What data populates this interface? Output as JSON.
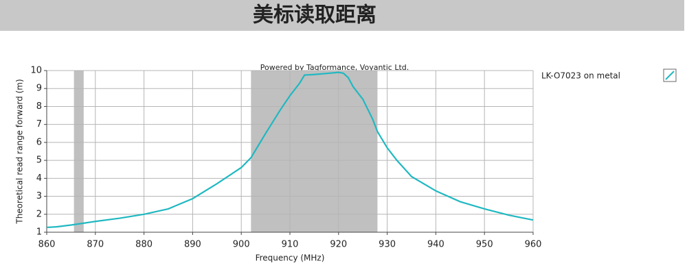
{
  "chart_data": {
    "type": "line",
    "title": "美标读取距离",
    "annotation": "Powered by Tagformance, Voyantic Ltd.",
    "x_label": "Frequency (MHz)",
    "y_label": "Theoretical read range forward (m)",
    "x": [
      860,
      862,
      865,
      868,
      870,
      875,
      880,
      885,
      890,
      895,
      900,
      902,
      905,
      908,
      910,
      912,
      913,
      915,
      918,
      920,
      921,
      922,
      923,
      925,
      927,
      928,
      930,
      932,
      935,
      940,
      945,
      950,
      955,
      960
    ],
    "series": [
      {
        "name": "LK-O7023 on metal",
        "color": "#1fb8c1",
        "values": [
          1.27,
          1.3,
          1.4,
          1.52,
          1.6,
          1.78,
          2.0,
          2.3,
          2.87,
          3.7,
          4.6,
          5.15,
          6.5,
          7.8,
          8.6,
          9.3,
          9.75,
          9.78,
          9.85,
          9.9,
          9.85,
          9.6,
          9.1,
          8.4,
          7.3,
          6.6,
          5.7,
          5.0,
          4.1,
          3.3,
          2.7,
          2.3,
          1.95,
          1.68
        ]
      }
    ],
    "bands": [
      [
        865.6,
        867.6
      ],
      [
        902,
        928
      ]
    ],
    "band_color": "#c0c0c0",
    "xlim": [
      860,
      960
    ],
    "xticks": [
      860,
      870,
      880,
      890,
      900,
      910,
      920,
      930,
      940,
      950,
      960
    ],
    "ylim": [
      1,
      10
    ],
    "yticks": [
      1,
      2,
      3,
      4,
      5,
      6,
      7,
      8,
      9,
      10
    ],
    "grid": true
  }
}
